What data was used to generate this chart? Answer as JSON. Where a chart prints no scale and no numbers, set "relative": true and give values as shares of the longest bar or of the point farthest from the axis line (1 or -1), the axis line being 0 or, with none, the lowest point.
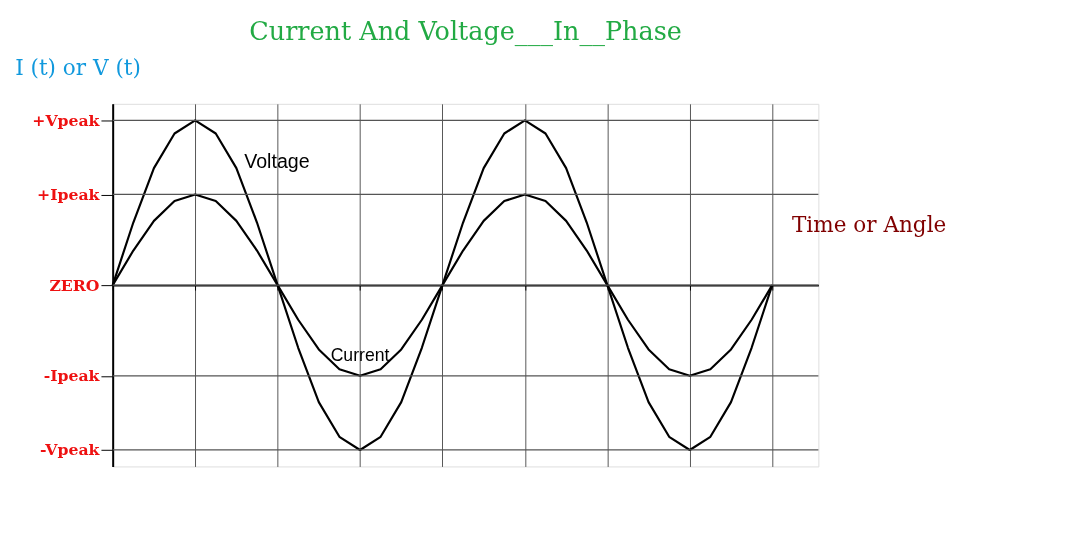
{
  "chart_data": {
    "type": "line",
    "title": "Current And Voltage___In__Phase",
    "xlabel": "Time or Angle",
    "ylabel": "I (t) or V (t)",
    "categories": [
      null,
      null,
      null,
      null,
      null,
      null,
      null,
      null,
      null,
      null,
      null,
      null,
      null,
      null,
      null,
      null,
      null,
      null,
      null,
      null,
      null,
      null,
      null,
      null,
      null,
      null,
      null,
      null,
      null,
      null,
      null,
      null,
      null
    ],
    "series": [
      {
        "name": "Voltage",
        "color": "#000000",
        "values": [
          0,
          0.38,
          0.71,
          0.92,
          1,
          0.92,
          0.71,
          0.38,
          0,
          -0.38,
          -0.71,
          -0.92,
          -1,
          -0.92,
          -0.71,
          -0.38,
          0,
          0.38,
          0.71,
          0.92,
          1,
          0.92,
          0.71,
          0.38,
          0,
          -0.38,
          -0.71,
          -0.92,
          -1,
          -0.92,
          -0.71,
          -0.38,
          0
        ]
      },
      {
        "name": "Current",
        "color": "#000000",
        "values": [
          0,
          0.21,
          0.39,
          0.51,
          0.55,
          0.51,
          0.39,
          0.21,
          0,
          -0.21,
          -0.39,
          -0.51,
          -0.55,
          -0.51,
          -0.39,
          -0.21,
          0,
          0.21,
          0.39,
          0.51,
          0.55,
          0.51,
          0.39,
          0.21,
          0,
          -0.21,
          -0.39,
          -0.51,
          -0.55,
          -0.51,
          -0.39,
          -0.21,
          0
        ]
      }
    ],
    "relative": true,
    "ref_lines": [
      {
        "axis": "y",
        "value": 1,
        "label": "+Vpeak"
      },
      {
        "axis": "y",
        "value": 0.55,
        "label": "+Ipeak"
      },
      {
        "axis": "y",
        "value": 0,
        "label": "ZERO"
      },
      {
        "axis": "y",
        "value": -0.55,
        "label": "-Ipeak"
      },
      {
        "axis": "y",
        "value": -1,
        "label": "-Vpeak"
      }
    ],
    "grid": "x",
    "legend": false,
    "marker": "none",
    "line_style": "solid"
  }
}
